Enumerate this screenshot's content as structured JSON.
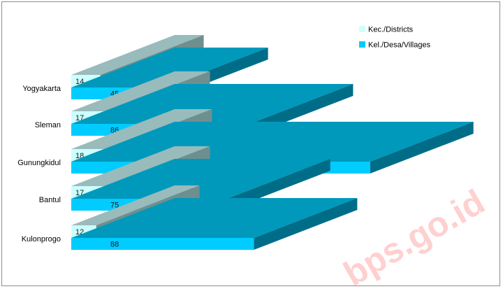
{
  "chart_data": {
    "type": "bar",
    "orientation": "horizontal",
    "three_d": true,
    "categories": [
      "Yogyakarta",
      "Sleman",
      "Gunungkidul",
      "Bantul",
      "Kulonprogo"
    ],
    "series": [
      {
        "name": "Kec./Districts",
        "values": [
          14,
          17,
          18,
          17,
          12
        ],
        "color": "#ccffff",
        "top_color": "#99bbbb",
        "side_color": "#6f8f8f"
      },
      {
        "name": "Kel./Desa/Villages",
        "values": [
          45,
          86,
          144,
          75,
          88
        ],
        "color": "#00ccff",
        "top_color": "#0099bb",
        "side_color": "#006d88"
      }
    ],
    "legend_position": "top-right",
    "grid": false
  },
  "watermark": "bps.go.id"
}
